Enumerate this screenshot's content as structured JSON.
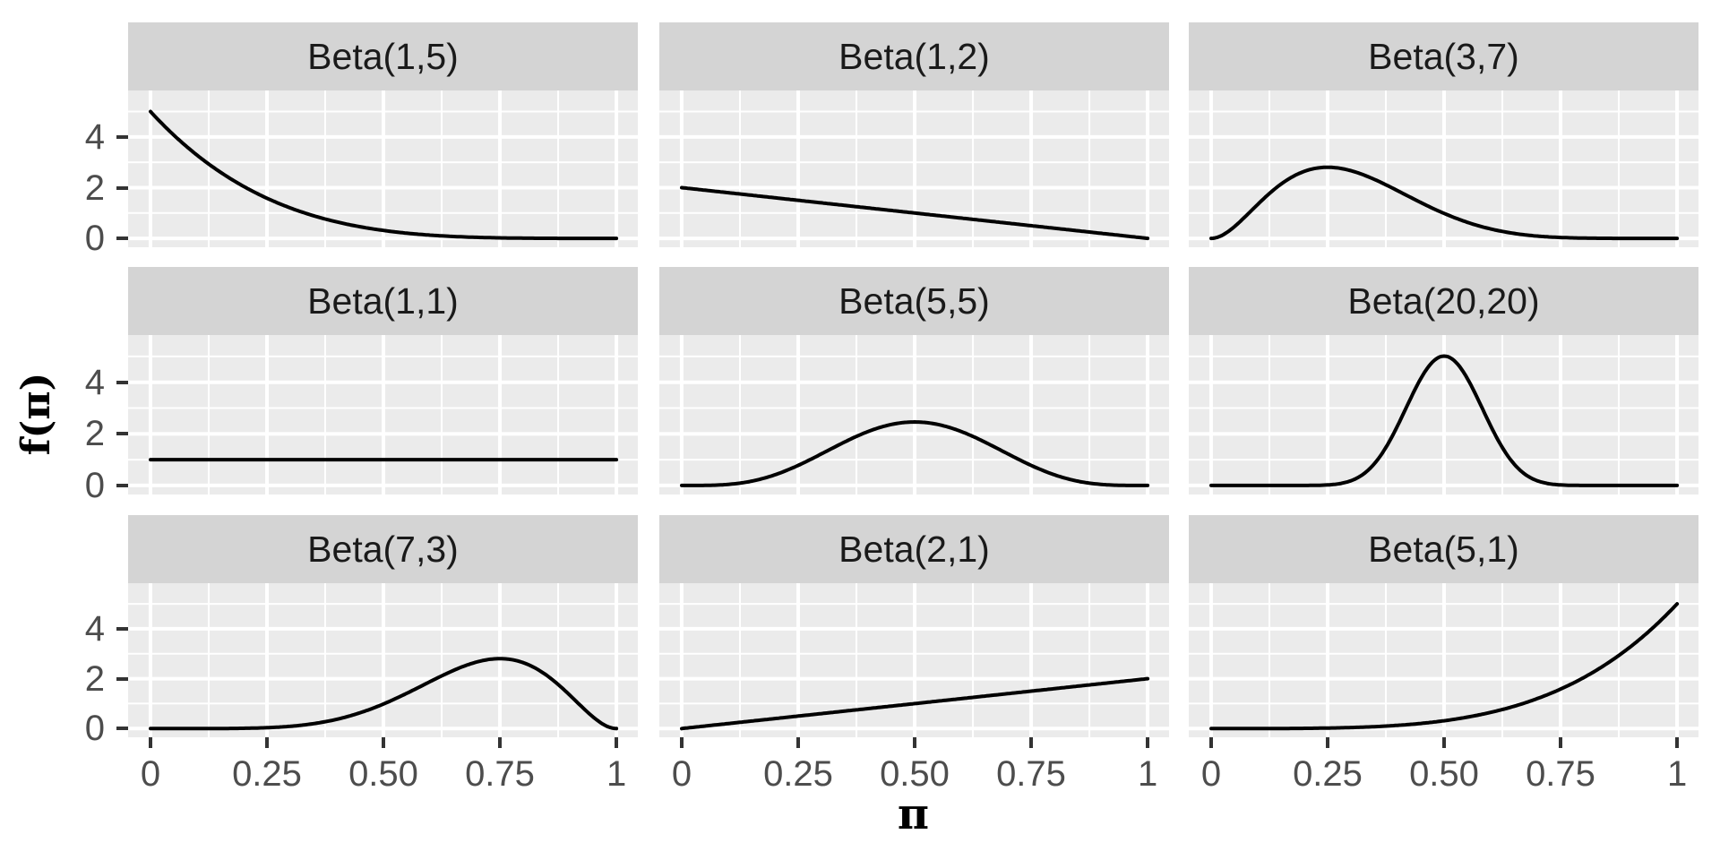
{
  "chart_data": {
    "type": "line",
    "description": "3x3 faceted grid of Beta probability density curves, ggplot2 gray theme, no legend",
    "facets": [
      {
        "title": "Beta(1,5)",
        "alpha": 1,
        "beta": 5,
        "sample_y_at_major_x": [
          5,
          1.58,
          0.31,
          0.02,
          0
        ]
      },
      {
        "title": "Beta(1,2)",
        "alpha": 1,
        "beta": 2,
        "sample_y_at_major_x": [
          2,
          1.5,
          1,
          0.5,
          0
        ]
      },
      {
        "title": "Beta(3,7)",
        "alpha": 3,
        "beta": 7,
        "sample_y_at_major_x": [
          0,
          2.8,
          0.98,
          0.03,
          0
        ]
      },
      {
        "title": "Beta(1,1)",
        "alpha": 1,
        "beta": 1,
        "sample_y_at_major_x": [
          1,
          1,
          1,
          1,
          1
        ]
      },
      {
        "title": "Beta(5,5)",
        "alpha": 5,
        "beta": 5,
        "sample_y_at_major_x": [
          0,
          0.78,
          2.46,
          0.78,
          0
        ]
      },
      {
        "title": "Beta(20,20)",
        "alpha": 20,
        "beta": 20,
        "sample_y_at_major_x": [
          0,
          0.02,
          5.09,
          0.02,
          0
        ]
      },
      {
        "title": "Beta(7,3)",
        "alpha": 7,
        "beta": 3,
        "sample_y_at_major_x": [
          0,
          0.03,
          0.98,
          2.8,
          0
        ]
      },
      {
        "title": "Beta(2,1)",
        "alpha": 2,
        "beta": 1,
        "sample_y_at_major_x": [
          0,
          0.5,
          1,
          1.5,
          2
        ]
      },
      {
        "title": "Beta(5,1)",
        "alpha": 5,
        "beta": 1,
        "sample_y_at_major_x": [
          0,
          0.02,
          0.31,
          1.58,
          5
        ]
      }
    ],
    "x_axis": {
      "label": "π",
      "range": [
        -0.048,
        1.046
      ],
      "major_ticks": [
        0,
        0.25,
        0.5,
        0.75,
        1
      ],
      "tick_labels": [
        "0",
        "0.25",
        "0.50",
        "0.75",
        "1"
      ],
      "minor_gridlines": [
        0.125,
        0.375,
        0.625,
        0.875
      ]
    },
    "y_axis": {
      "label": "f(π)",
      "range": [
        -0.35,
        5.83
      ],
      "major_ticks": [
        0,
        2,
        4
      ],
      "tick_labels": [
        "0",
        "2",
        "4"
      ],
      "minor_gridlines": [
        1,
        3,
        5
      ]
    },
    "legend": "none",
    "grid": "white major and minor gridlines on gray panels",
    "style": {
      "panel_background": "#EBEBEB",
      "strip_background": "#D4D4D4",
      "strip_text_color": "#1A1A1A",
      "gridline_color": "#FFFFFF",
      "curve_color": "#000000",
      "tick_label_color": "#4D4D4D",
      "tick_mark_color": "#333333",
      "axis_title_color": "#000000",
      "figure_background": "#FFFFFF"
    }
  }
}
